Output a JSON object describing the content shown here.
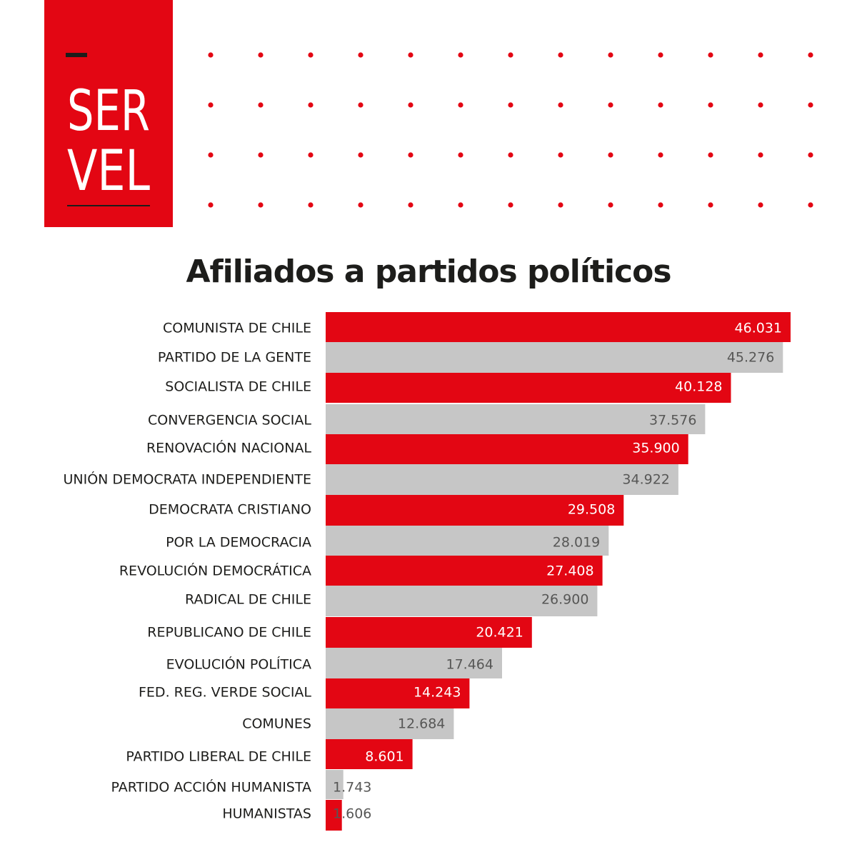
{
  "brand": {
    "logo_line1": "SER",
    "logo_line2": "VEL",
    "logo_color": "#e30613"
  },
  "colors": {
    "accent": "#e30613",
    "secondary": "#c6c6c6",
    "label_on_accent": "#ffffff",
    "label_on_secondary": "#575756"
  },
  "chart_data": {
    "type": "bar",
    "orientation": "horizontal",
    "title": "Afiliados a partidos políticos",
    "categories": [
      "COMUNISTA DE CHILE",
      "PARTIDO DE LA GENTE",
      "SOCIALISTA DE CHILE",
      "CONVERGENCIA SOCIAL",
      "RENOVACIÓN NACIONAL",
      "UNIÓN DEMOCRATA INDEPENDIENTE",
      "DEMOCRATA CRISTIANO",
      "POR LA DEMOCRACIA",
      "REVOLUCIÓN DEMOCRÁTICA",
      "RADICAL DE CHILE",
      "REPUBLICANO DE CHILE",
      "EVOLUCIÓN POLÍTICA",
      "FED. REG. VERDE SOCIAL",
      "COMUNES",
      "PARTIDO LIBERAL DE CHILE",
      "PARTIDO ACCIÓN HUMANISTA",
      "HUMANISTAS"
    ],
    "values": [
      46031,
      45276,
      40128,
      37576,
      35900,
      34922,
      29508,
      28019,
      27408,
      26900,
      20421,
      17464,
      14243,
      12684,
      8601,
      1743,
      1606
    ],
    "value_labels": [
      "46.031",
      "45.276",
      "40.128",
      "37.576",
      "35.900",
      "34.922",
      "29.508",
      "28.019",
      "27.408",
      "26.900",
      "20.421",
      "17.464",
      "14.243",
      "12.684",
      "8.601",
      "1.743",
      "1.606"
    ],
    "bar_colors": "alternating accent / secondary, starting with accent",
    "grid": false,
    "legend": "none"
  }
}
